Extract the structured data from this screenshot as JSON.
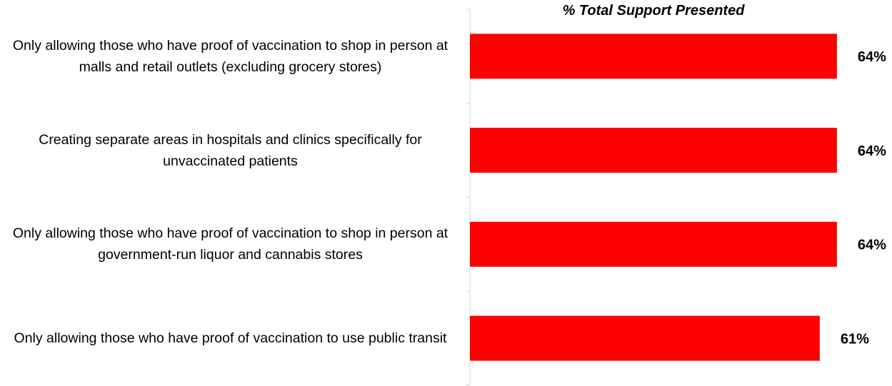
{
  "chart_data": {
    "type": "bar",
    "orientation": "horizontal",
    "title": "% Total Support Presented",
    "categories": [
      "Only allowing those who have proof of vaccination to shop in person at malls and retail outlets (excluding grocery stores)",
      "Creating separate areas in hospitals and clinics specifically for unvaccinated patients",
      "Only allowing those who have proof of vaccination to shop in person at government-run liquor and cannabis stores",
      "Only allowing those who have proof of vaccination to use public transit"
    ],
    "values": [
      64,
      64,
      64,
      61
    ],
    "value_labels": [
      "64%",
      "64%",
      "64%",
      "61%"
    ],
    "color": "#ff0000"
  }
}
